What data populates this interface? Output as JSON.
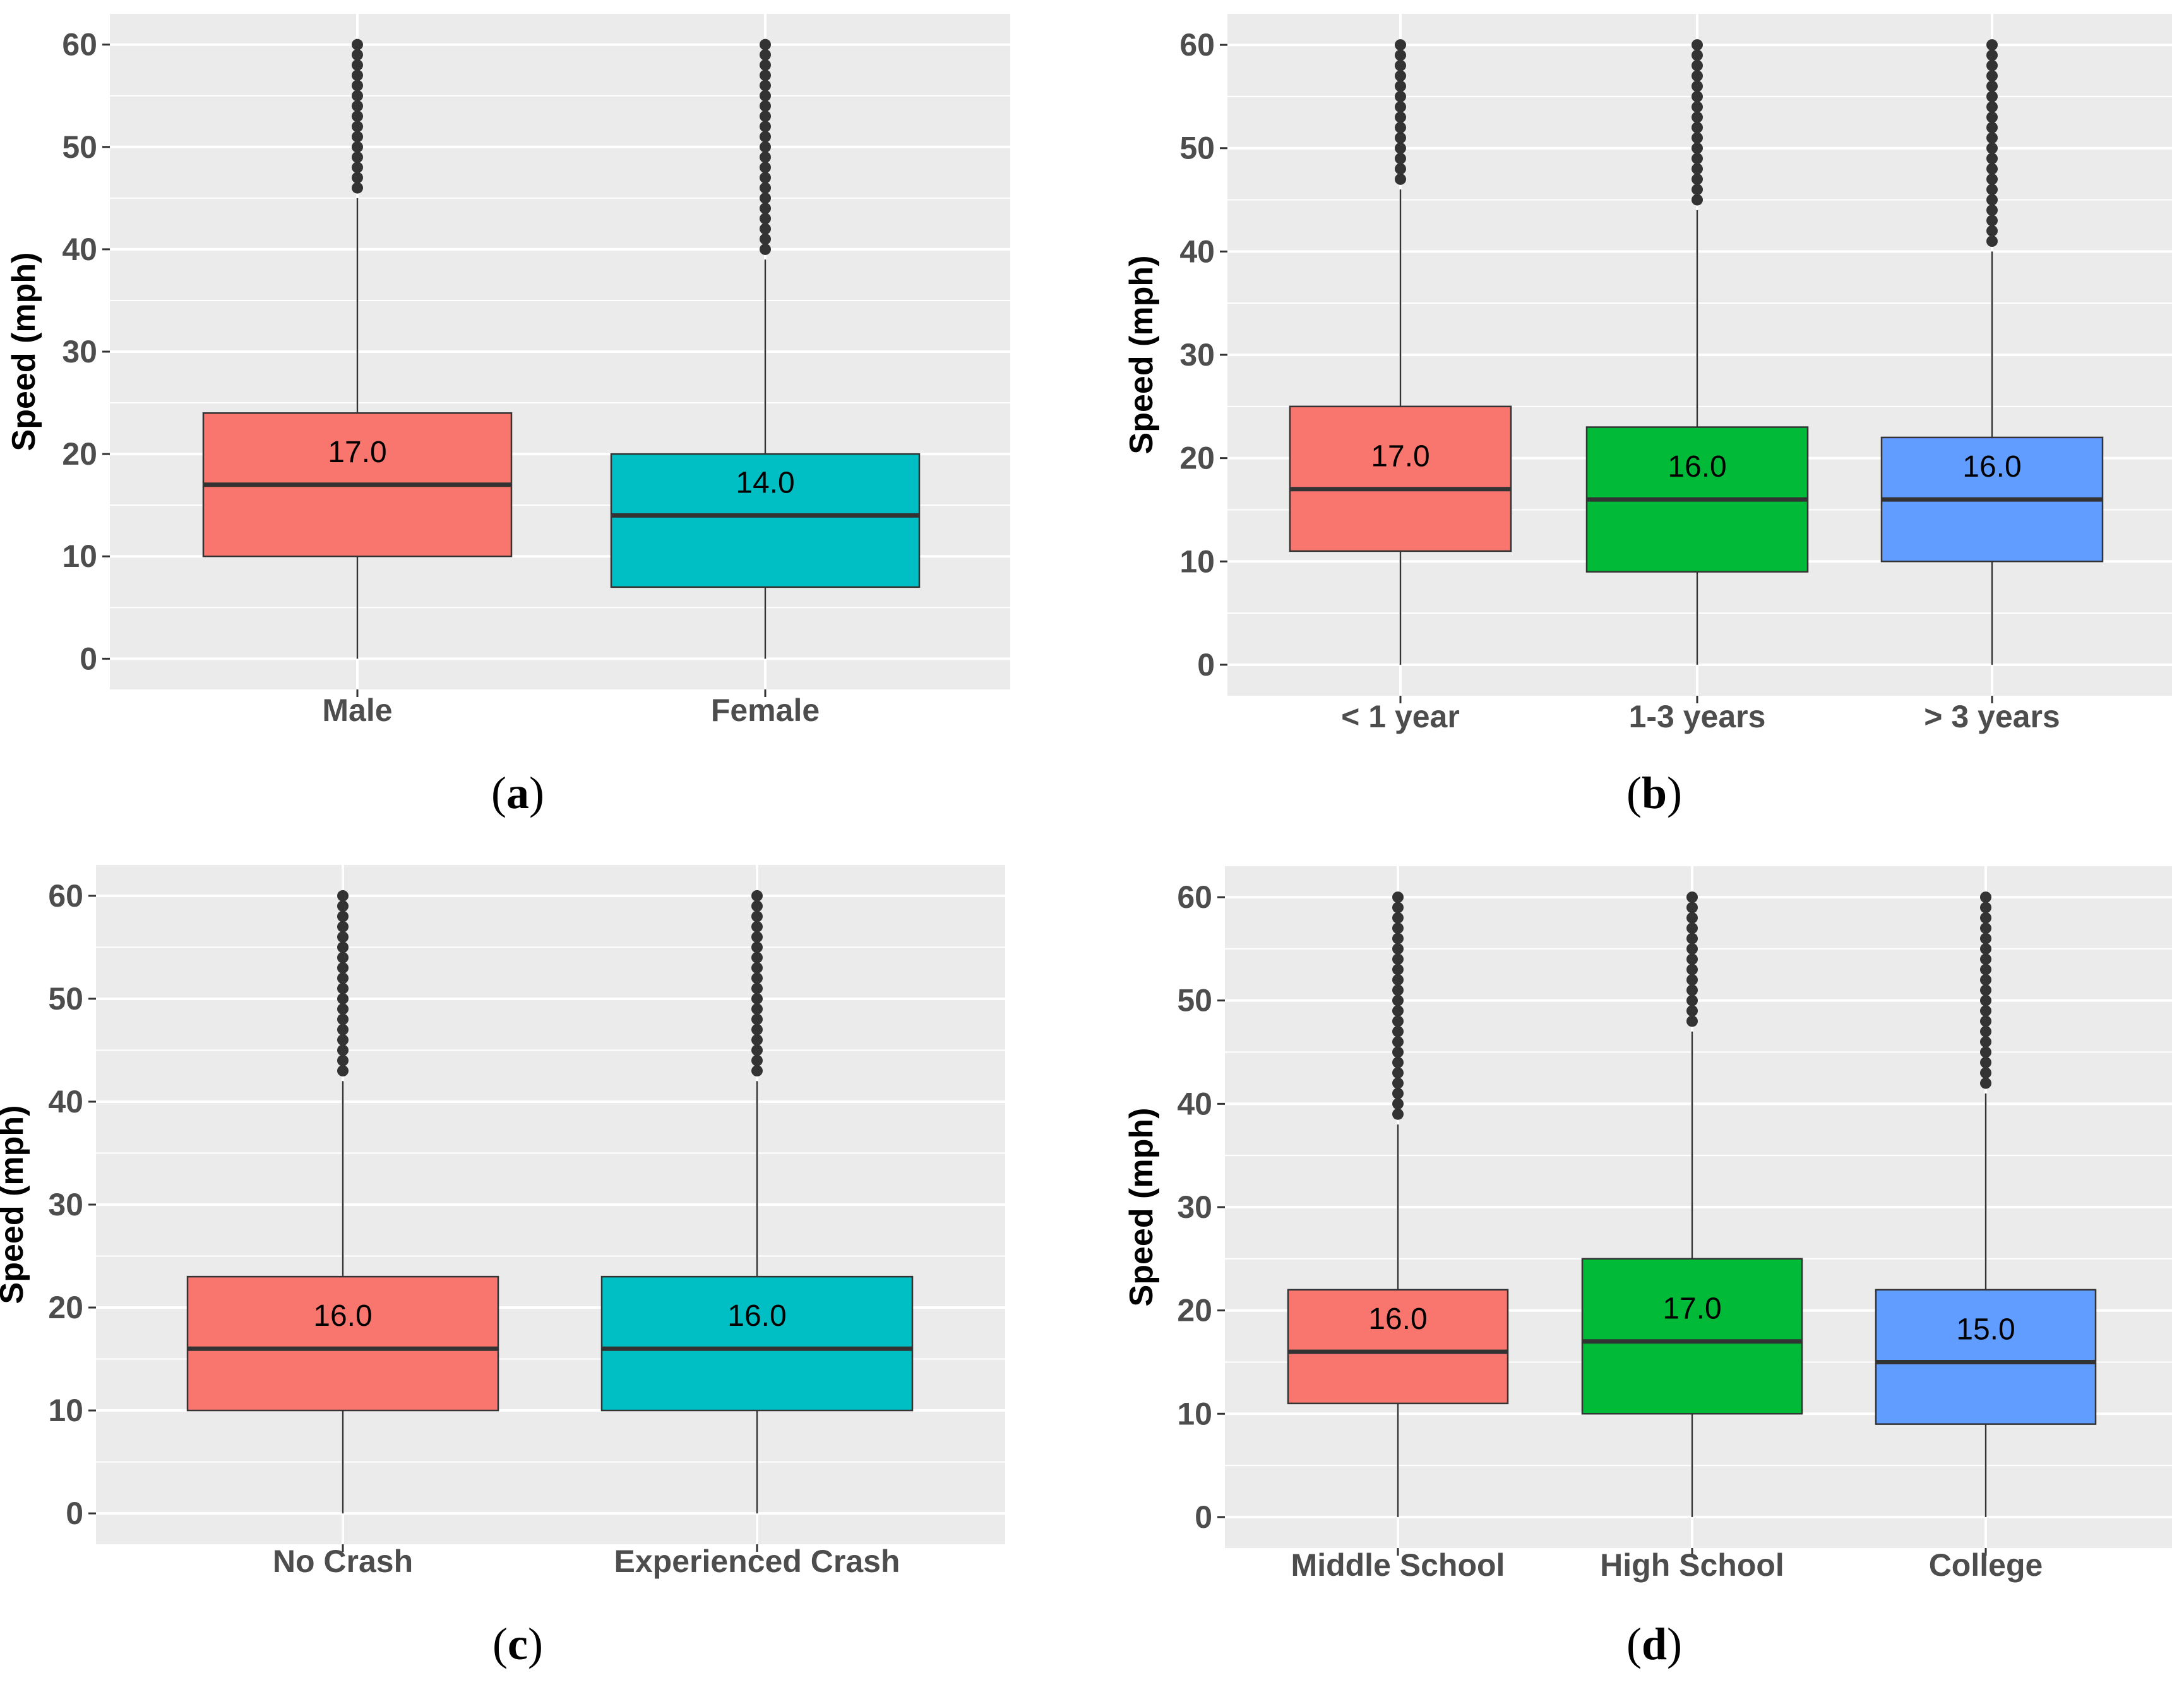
{
  "figure": {
    "domain": "boxplots of speed by driver group"
  },
  "chart_data": [
    {
      "type": "boxplot",
      "panel_label": "a",
      "ylabel": "Speed (mph)",
      "ylim": [
        -3,
        63
      ],
      "yticks": [
        0,
        10,
        20,
        30,
        40,
        50,
        60
      ],
      "categories": [
        "Male",
        "Female"
      ],
      "colors": [
        "#F8766D",
        "#00BFC4"
      ],
      "boxes": [
        {
          "category": "Male",
          "whisker_low": 0,
          "q1": 10,
          "median": 17,
          "q3": 24,
          "whisker_high": 45,
          "median_label": "17.0",
          "outliers": [
            46,
            47,
            48,
            49,
            50,
            51,
            52,
            53,
            54,
            55,
            56,
            57,
            58,
            59,
            60
          ]
        },
        {
          "category": "Female",
          "whisker_low": 0,
          "q1": 7,
          "median": 14,
          "q3": 20,
          "whisker_high": 39,
          "median_label": "14.0",
          "outliers": [
            40,
            41,
            42,
            43,
            44,
            45,
            46,
            47,
            48,
            49,
            50,
            51,
            52,
            53,
            54,
            55,
            56,
            57,
            58,
            59,
            60
          ]
        }
      ]
    },
    {
      "type": "boxplot",
      "panel_label": "b",
      "ylabel": "Speed (mph)",
      "ylim": [
        -3,
        63
      ],
      "yticks": [
        0,
        10,
        20,
        30,
        40,
        50,
        60
      ],
      "categories": [
        "< 1 year",
        "1-3 years",
        "> 3 years"
      ],
      "colors": [
        "#F8766D",
        "#00BA38",
        "#619CFF"
      ],
      "boxes": [
        {
          "category": "< 1 year",
          "whisker_low": 0,
          "q1": 11,
          "median": 17,
          "q3": 25,
          "whisker_high": 46,
          "median_label": "17.0",
          "outliers": [
            47,
            48,
            49,
            50,
            51,
            52,
            53,
            54,
            55,
            56,
            57,
            58,
            59,
            60
          ]
        },
        {
          "category": "1-3 years",
          "whisker_low": 0,
          "q1": 9,
          "median": 16,
          "q3": 23,
          "whisker_high": 44,
          "median_label": "16.0",
          "outliers": [
            45,
            46,
            47,
            48,
            49,
            50,
            51,
            52,
            53,
            54,
            55,
            56,
            57,
            58,
            59,
            60
          ]
        },
        {
          "category": "> 3 years",
          "whisker_low": 0,
          "q1": 10,
          "median": 16,
          "q3": 22,
          "whisker_high": 40,
          "median_label": "16.0",
          "outliers": [
            41,
            42,
            43,
            44,
            45,
            46,
            47,
            48,
            49,
            50,
            51,
            52,
            53,
            54,
            55,
            56,
            57,
            58,
            59,
            60
          ]
        }
      ]
    },
    {
      "type": "boxplot",
      "panel_label": "c",
      "ylabel": "Speed (mph)",
      "ylim": [
        -3,
        63
      ],
      "yticks": [
        0,
        10,
        20,
        30,
        40,
        50,
        60
      ],
      "categories": [
        "No Crash",
        "Experienced Crash"
      ],
      "colors": [
        "#F8766D",
        "#00BFC4"
      ],
      "boxes": [
        {
          "category": "No Crash",
          "whisker_low": 0,
          "q1": 10,
          "median": 16,
          "q3": 23,
          "whisker_high": 42,
          "median_label": "16.0",
          "outliers": [
            43,
            44,
            45,
            46,
            47,
            48,
            49,
            50,
            51,
            52,
            53,
            54,
            55,
            56,
            57,
            58,
            59,
            60
          ]
        },
        {
          "category": "Experienced Crash",
          "whisker_low": 0,
          "q1": 10,
          "median": 16,
          "q3": 23,
          "whisker_high": 42,
          "median_label": "16.0",
          "outliers": [
            43,
            44,
            45,
            46,
            47,
            48,
            49,
            50,
            51,
            52,
            53,
            54,
            55,
            56,
            57,
            58,
            59,
            60
          ]
        }
      ]
    },
    {
      "type": "boxplot",
      "panel_label": "d",
      "ylabel": "Speed (mph)",
      "ylim": [
        -3,
        63
      ],
      "yticks": [
        0,
        10,
        20,
        30,
        40,
        50,
        60
      ],
      "categories": [
        "Middle School",
        "High School",
        "College"
      ],
      "colors": [
        "#F8766D",
        "#00BA38",
        "#619CFF"
      ],
      "boxes": [
        {
          "category": "Middle School",
          "whisker_low": 0,
          "q1": 11,
          "median": 16,
          "q3": 22,
          "whisker_high": 38,
          "median_label": "16.0",
          "outliers": [
            39,
            40,
            41,
            42,
            43,
            44,
            45,
            46,
            47,
            48,
            49,
            50,
            51,
            52,
            53,
            54,
            55,
            56,
            57,
            58,
            59,
            60
          ]
        },
        {
          "category": "High School",
          "whisker_low": 0,
          "q1": 10,
          "median": 17,
          "q3": 25,
          "whisker_high": 47,
          "median_label": "17.0",
          "outliers": [
            48,
            49,
            50,
            51,
            52,
            53,
            54,
            55,
            56,
            57,
            58,
            59,
            60
          ]
        },
        {
          "category": "College",
          "whisker_low": 0,
          "q1": 9,
          "median": 15,
          "q3": 22,
          "whisker_high": 41,
          "median_label": "15.0",
          "outliers": [
            42,
            43,
            44,
            45,
            46,
            47,
            48,
            49,
            50,
            51,
            52,
            53,
            54,
            55,
            56,
            57,
            58,
            59,
            60
          ]
        }
      ]
    }
  ]
}
